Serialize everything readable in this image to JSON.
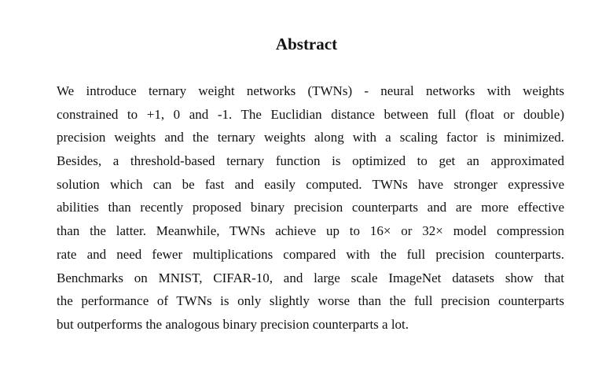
{
  "title": "Abstract",
  "abstract_lines": [
    "We introduce ternary weight networks (TWNs) - neural networks with weights",
    "constrained to +1, 0 and -1. The Euclidian distance between full (float or double)",
    "precision weights and the ternary weights along with a scaling factor is minimized.",
    "Besides, a threshold-based ternary function is optimized to get an approximated",
    "solution which can be fast and easily computed. TWNs have stronger expressive",
    "abilities than recently proposed binary precision counterparts and are more effective",
    "than the latter. Meanwhile, TWNs achieve up to 16× or 32× model compression",
    "rate and need fewer multiplications compared with the full precision counterparts.",
    "Benchmarks on MNIST, CIFAR-10, and large scale ImageNet datasets show that",
    "the performance of TWNs is only slightly worse than the full precision counterparts",
    "but outperforms the analogous binary precision counterparts a lot."
  ]
}
